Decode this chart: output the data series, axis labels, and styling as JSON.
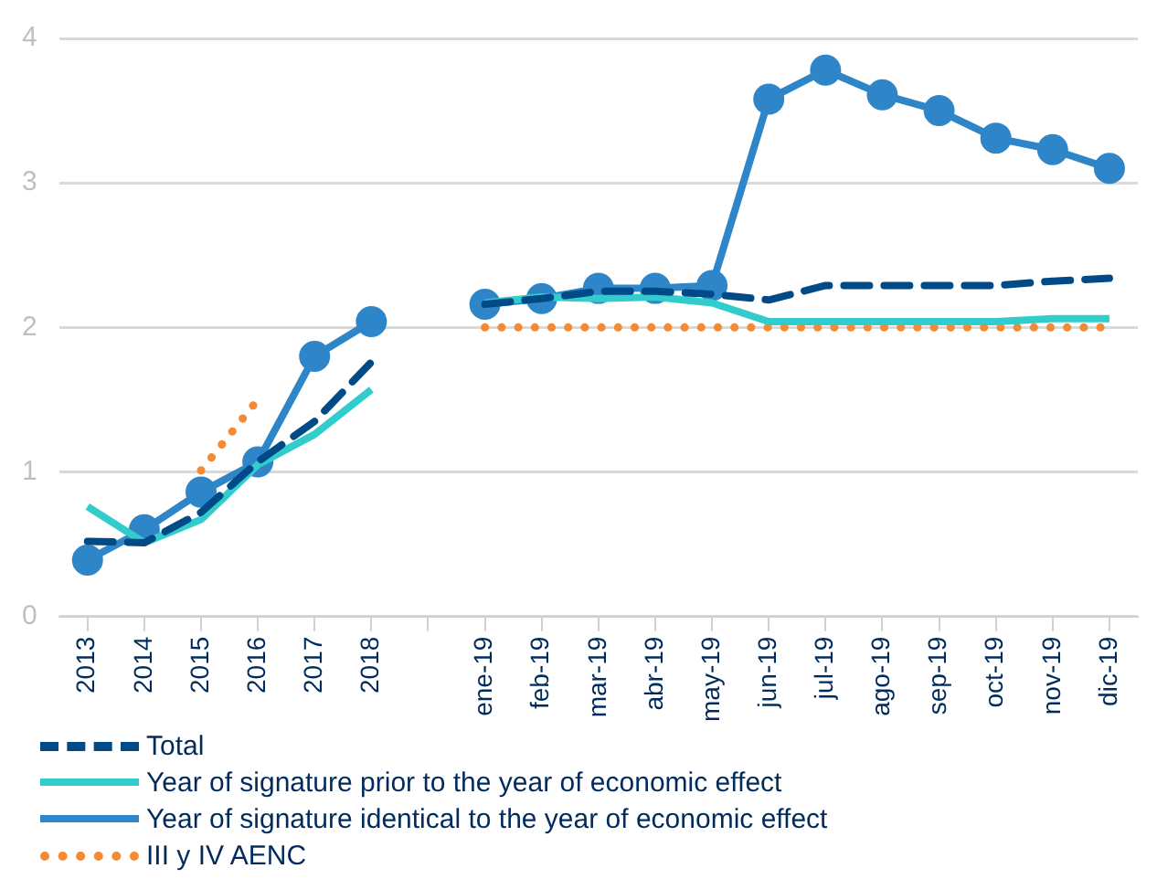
{
  "chart_data": {
    "type": "line",
    "categories": [
      "2013",
      "2014",
      "2015",
      "2016",
      "2017",
      "2018",
      null,
      "ene-19",
      "feb-19",
      "mar-19",
      "abr-19",
      "may-19",
      "jun-19",
      "jul-19",
      "ago-19",
      "sep-19",
      "oct-19",
      "nov-19",
      "dic-19"
    ],
    "ylim": [
      0,
      4
    ],
    "yticks": [
      0,
      1,
      2,
      3,
      4
    ],
    "grid": "y",
    "legend": "bottom",
    "series": [
      {
        "name": "Total",
        "color": "#004b87",
        "line_style": "dashed",
        "marker": "none",
        "values": [
          0.52,
          0.51,
          0.72,
          1.07,
          1.35,
          1.76,
          null,
          2.16,
          2.2,
          2.25,
          2.25,
          2.23,
          2.19,
          2.29,
          2.29,
          2.29,
          2.29,
          2.32,
          2.34
        ]
      },
      {
        "name": "Year of signature prior to the year of economic effect",
        "color": "#33cccc",
        "line_style": "solid",
        "marker": "none",
        "values": [
          0.76,
          0.51,
          0.67,
          1.05,
          1.26,
          1.57,
          null,
          2.17,
          2.21,
          2.2,
          2.21,
          2.17,
          2.04,
          2.04,
          2.04,
          2.04,
          2.04,
          2.06,
          2.06
        ]
      },
      {
        "name": "Year of signature identical to the year of economic effect",
        "color": "#2e86c8",
        "line_style": "solid",
        "marker": "circle",
        "values": [
          0.39,
          0.6,
          0.86,
          1.07,
          1.8,
          2.04,
          null,
          2.16,
          2.2,
          2.27,
          2.27,
          2.29,
          3.58,
          3.78,
          3.61,
          3.5,
          3.31,
          3.23,
          3.1
        ]
      },
      {
        "name": "III y IV AENC",
        "color": "#f58a35",
        "line_style": "dotted",
        "marker": "none",
        "values": [
          null,
          null,
          1.01,
          1.5,
          null,
          null,
          null,
          2.0,
          2.0,
          2.0,
          2.0,
          2.0,
          2.0,
          2.0,
          2.0,
          2.0,
          2.0,
          2.0,
          2.0
        ]
      }
    ]
  }
}
